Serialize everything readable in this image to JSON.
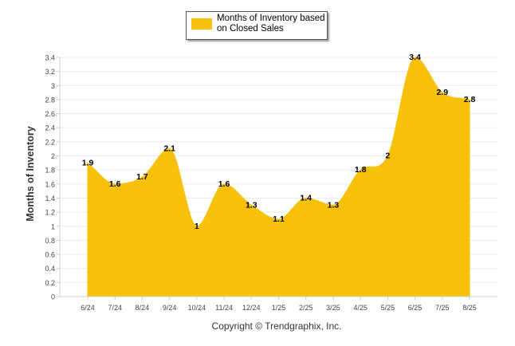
{
  "legend": {
    "label": "Months of Inventory based on Closed Sales",
    "color": "#F7C10A"
  },
  "ylabel": "Months of Inventory",
  "copyright": "Copyright © Trendgraphix, Inc.",
  "chart_data": {
    "type": "area",
    "categories": [
      "6/24",
      "7/24",
      "8/24",
      "9/24",
      "10/24",
      "11/24",
      "12/24",
      "1/25",
      "2/25",
      "3/25",
      "4/25",
      "5/25",
      "6/25",
      "7/25",
      "8/25"
    ],
    "series": [
      {
        "name": "Months of Inventory based on Closed Sales",
        "values": [
          1.9,
          1.6,
          1.7,
          2.1,
          1,
          1.6,
          1.3,
          1.1,
          1.4,
          1.3,
          1.8,
          2,
          3.4,
          2.9,
          2.8
        ]
      }
    ],
    "data_labels": [
      "1.9",
      "1.6",
      "1.7",
      "2.1",
      "1",
      "1.6",
      "1.3",
      "1.1",
      "1.4",
      "1.3",
      "1.8",
      "2",
      "3.4",
      "2.9",
      "2.8"
    ],
    "ylim": [
      0,
      3.4
    ],
    "yticks": [
      "0",
      "0.2",
      "0.4",
      "0.6",
      "0.8",
      "1",
      "1.2",
      "1.4",
      "1.6",
      "1.8",
      "2",
      "2.2",
      "2.4",
      "2.6",
      "2.8",
      "3",
      "3.2",
      "3.4"
    ],
    "grid": true,
    "legend_position": "top-center"
  }
}
